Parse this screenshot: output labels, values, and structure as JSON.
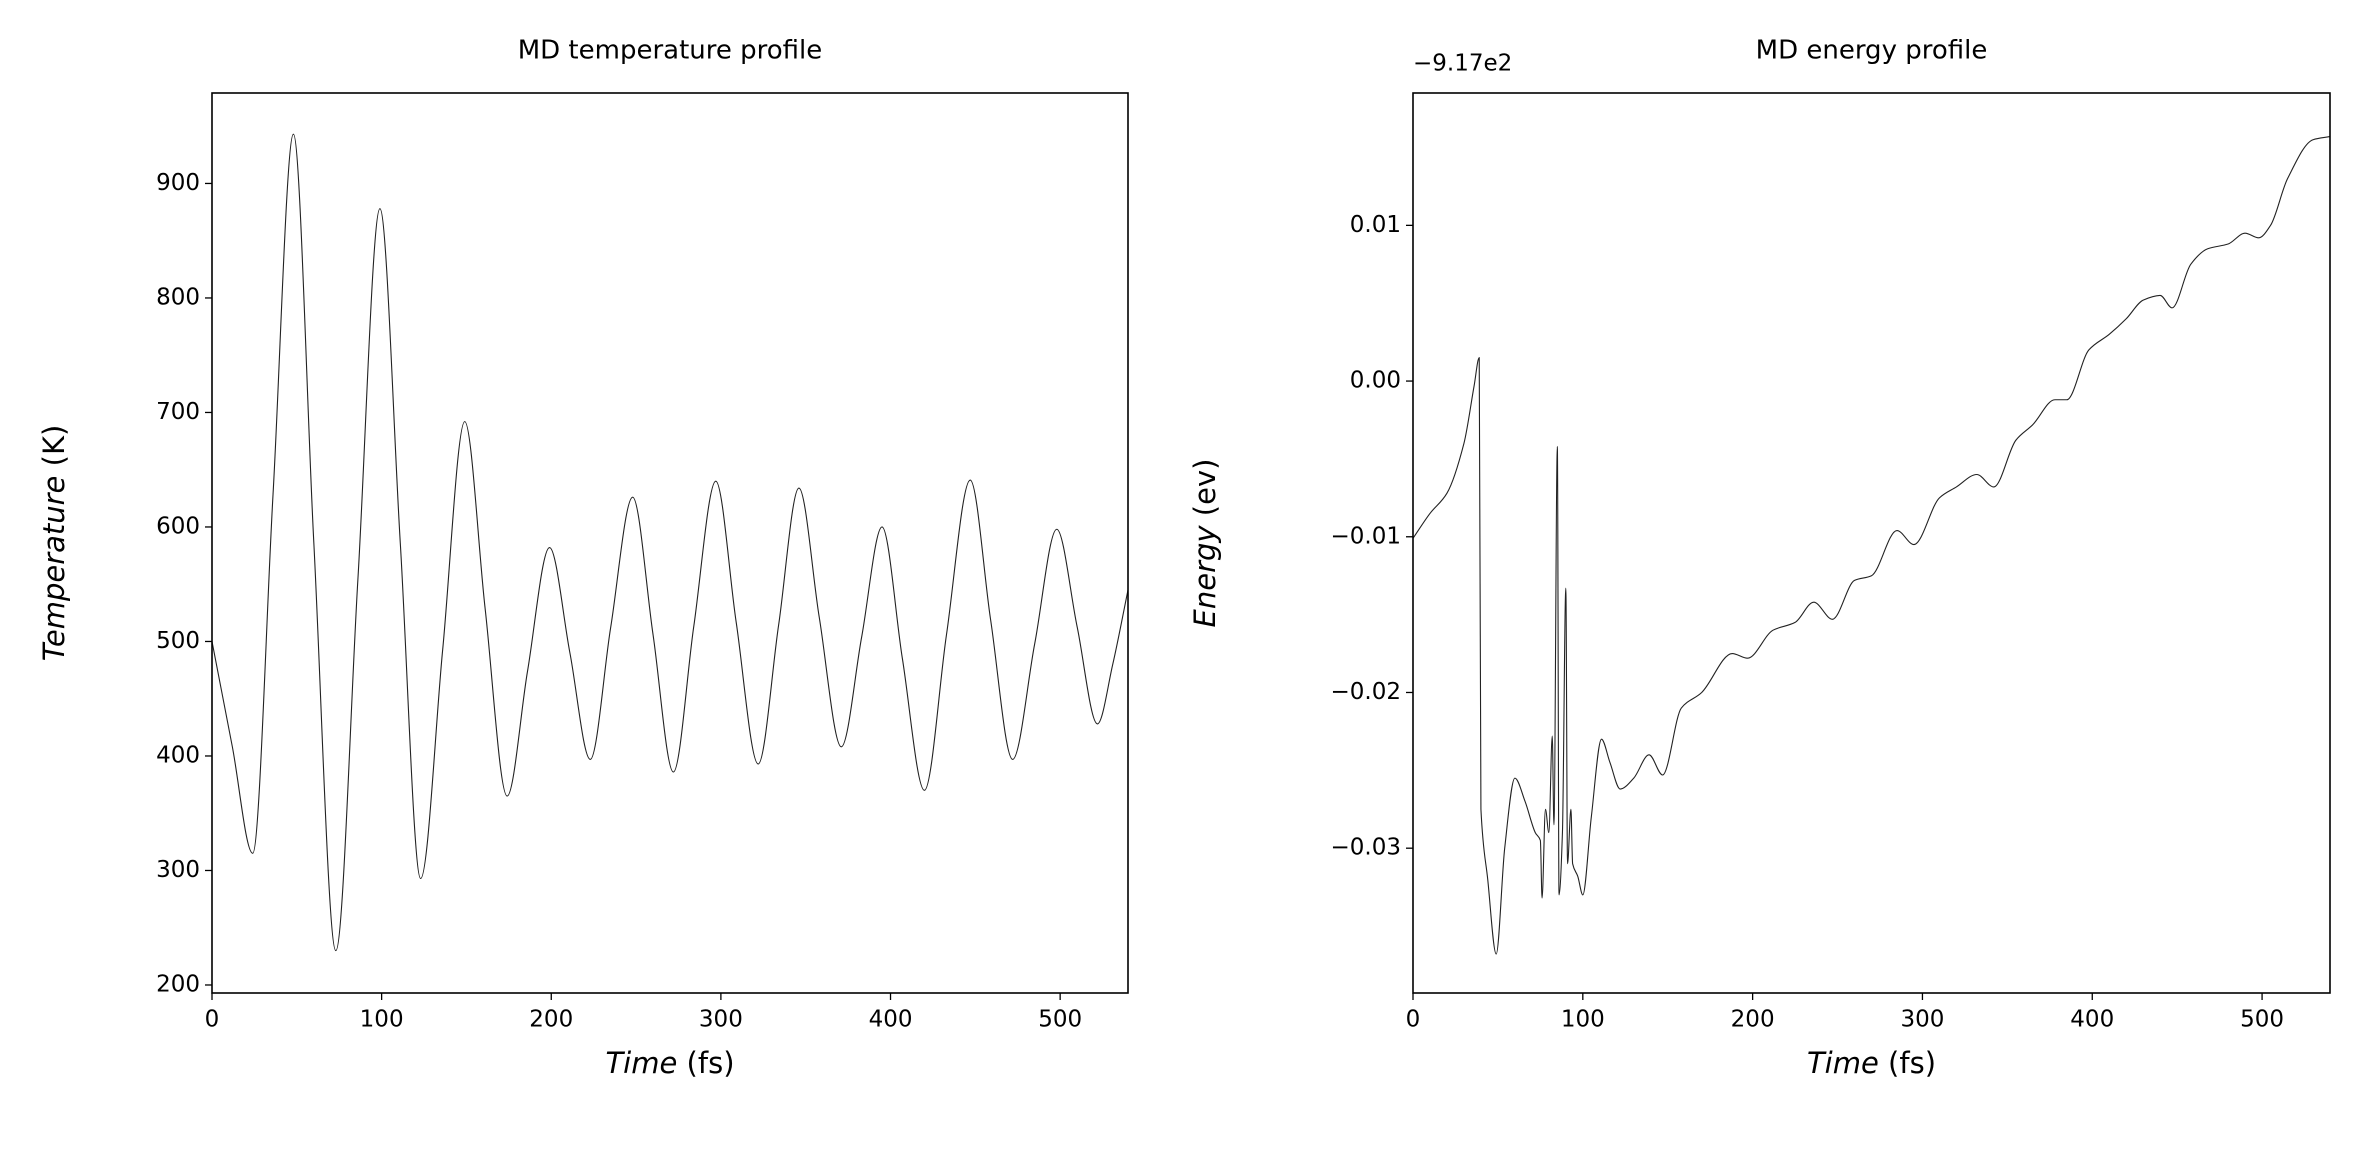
{
  "chart_data": [
    {
      "type": "line",
      "title": "MD temperature profile",
      "xlabel": "Time (fs)",
      "ylabel": "Temperature (K)",
      "color": "#222222",
      "x": [
        0,
        12,
        24,
        36,
        48,
        60,
        73,
        86,
        99,
        111,
        123,
        136,
        149,
        161,
        174,
        186,
        199,
        211,
        223,
        235,
        248,
        260,
        272,
        284,
        297,
        309,
        322,
        334,
        346,
        358,
        371,
        383,
        395,
        407,
        420,
        433,
        447,
        459,
        472,
        485,
        498,
        510,
        522,
        531,
        540
      ],
      "values": [
        500,
        408,
        315,
        629,
        943,
        587,
        230,
        554,
        878,
        586,
        293,
        493,
        692,
        529,
        365,
        474,
        582,
        490,
        397,
        512,
        626,
        506,
        386,
        513,
        640,
        517,
        393,
        514,
        634,
        521,
        408,
        504,
        600,
        485,
        370,
        506,
        641,
        519,
        397,
        498,
        598,
        513,
        428,
        480,
        545
      ],
      "xlim": [
        0,
        540
      ],
      "xticks": [
        0,
        100,
        200,
        300,
        400,
        500
      ],
      "ylim": [
        193,
        979
      ],
      "yticks": [
        200,
        300,
        400,
        500,
        600,
        700,
        800,
        900
      ]
    },
    {
      "type": "line",
      "title": "MD energy profile",
      "xlabel": "Time (fs)",
      "ylabel": "Energy (ev)",
      "color": "#222222",
      "offset_label": "−9.17e2",
      "x": [
        0,
        10,
        20,
        30,
        36,
        39,
        40,
        44,
        49,
        54,
        60,
        66,
        72,
        75,
        76,
        78,
        80,
        82,
        83,
        85,
        86,
        88,
        90,
        91,
        93,
        94,
        97,
        100,
        105,
        111,
        116,
        122,
        130,
        139,
        147,
        158,
        170,
        188,
        197,
        212,
        225,
        236,
        247,
        260,
        270,
        285,
        295,
        310,
        320,
        332,
        342,
        355,
        365,
        378,
        385,
        398,
        410,
        420,
        430,
        440,
        447,
        458,
        468,
        480,
        490,
        498,
        505,
        515,
        530,
        540
      ],
      "values": [
        -0.0101,
        -0.0085,
        -0.0072,
        -0.004,
        -0.0003,
        0.0015,
        -0.0275,
        -0.032,
        -0.0368,
        -0.03,
        -0.0255,
        -0.027,
        -0.029,
        -0.0295,
        -0.0332,
        -0.0275,
        -0.029,
        -0.0228,
        -0.0285,
        -0.0042,
        -0.033,
        -0.029,
        -0.0133,
        -0.031,
        -0.0275,
        -0.031,
        -0.0318,
        -0.033,
        -0.028,
        -0.023,
        -0.0245,
        -0.0262,
        -0.0255,
        -0.024,
        -0.0253,
        -0.021,
        -0.02,
        -0.0175,
        -0.0178,
        -0.016,
        -0.0155,
        -0.0142,
        -0.0153,
        -0.0128,
        -0.0125,
        -0.0096,
        -0.0105,
        -0.0075,
        -0.0068,
        -0.006,
        -0.0068,
        -0.0038,
        -0.0028,
        -0.0012,
        -0.0012,
        0.002,
        0.003,
        0.004,
        0.0052,
        0.0055,
        0.0047,
        0.0075,
        0.0085,
        0.0088,
        0.0095,
        0.0092,
        0.01,
        0.013,
        0.0155,
        0.0157
      ],
      "xlim": [
        0,
        540
      ],
      "xticks": [
        0,
        100,
        200,
        300,
        400,
        500
      ],
      "ylim": [
        -0.0393,
        0.0185
      ],
      "yticks": [
        {
          "value": -0.03,
          "label": "−0.03"
        },
        {
          "value": -0.02,
          "label": "−0.02"
        },
        {
          "value": -0.01,
          "label": "−0.01"
        },
        {
          "value": 0,
          "label": "0.00"
        },
        0.01
      ]
    }
  ]
}
